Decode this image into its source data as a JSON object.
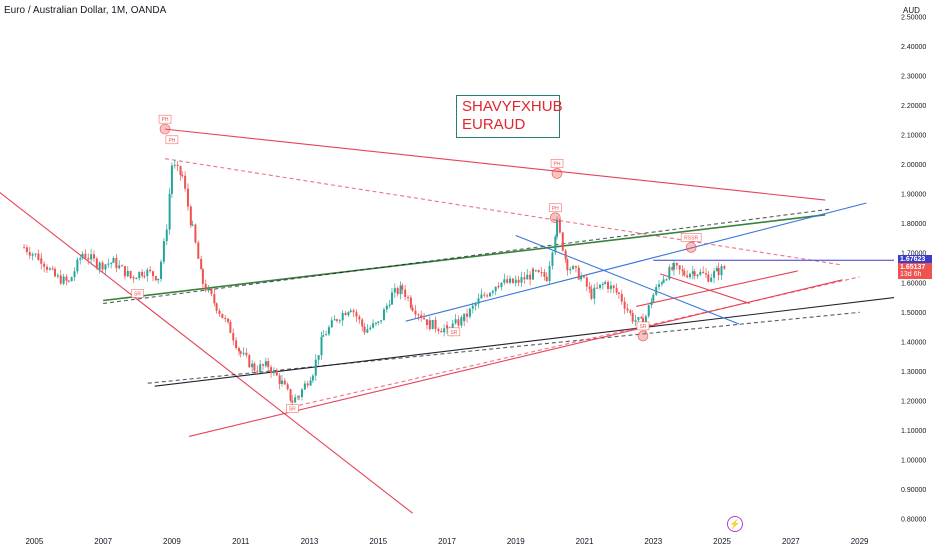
{
  "header": {
    "symbol_title": "Euro / Australian Dollar, 1M, OANDA",
    "currency": "AUD"
  },
  "annotation": {
    "line1": "SHAVYFXHUB",
    "line2": "EURAUD"
  },
  "price_tags": {
    "upper": "1.67623",
    "current": "1.65137",
    "countdown": "13d 6h"
  },
  "marker_labels": [
    "PH",
    "PH",
    "PH",
    "PH",
    "SR",
    "SR",
    "SR",
    "SR",
    "RSSR"
  ],
  "colors": {
    "up": "#26a69a",
    "down": "#ef5350",
    "trend_red": "#e53950",
    "trend_blue": "#2f6fdc",
    "trend_green": "#2e7d32",
    "trend_black": "#131722",
    "level": "#3c3cc8"
  },
  "chart_data": {
    "type": "candlestick",
    "x_tick_labels": [
      "2005",
      "2007",
      "2009",
      "2011",
      "2013",
      "2015",
      "2017",
      "2019",
      "2021",
      "2023",
      "2025",
      "2027",
      "2029"
    ],
    "y_tick_labels": [
      "2.50000",
      "2.40000",
      "2.30000",
      "2.20000",
      "2.10000",
      "2.00000",
      "1.90000",
      "1.80000",
      "1.70000",
      "1.60000",
      "1.50000",
      "1.40000",
      "1.30000",
      "1.20000",
      "1.10000",
      "1.00000",
      "0.90000",
      "0.80000"
    ],
    "ylim": [
      0.77,
      2.53
    ],
    "xlim": [
      2004.0,
      2030.0
    ],
    "close_path": [
      [
        2004.7,
        1.72
      ],
      [
        2005.2,
        1.68
      ],
      [
        2005.6,
        1.62
      ],
      [
        2006.0,
        1.6
      ],
      [
        2006.4,
        1.7
      ],
      [
        2006.9,
        1.66
      ],
      [
        2007.3,
        1.67
      ],
      [
        2007.8,
        1.62
      ],
      [
        2008.2,
        1.64
      ],
      [
        2008.6,
        1.62
      ],
      [
        2008.85,
        1.78
      ],
      [
        2009.0,
        2.0
      ],
      [
        2009.3,
        1.96
      ],
      [
        2009.6,
        1.78
      ],
      [
        2009.9,
        1.6
      ],
      [
        2010.3,
        1.52
      ],
      [
        2010.7,
        1.44
      ],
      [
        2011.0,
        1.36
      ],
      [
        2011.4,
        1.31
      ],
      [
        2011.8,
        1.32
      ],
      [
        2012.2,
        1.26
      ],
      [
        2012.5,
        1.2
      ],
      [
        2012.7,
        1.22
      ],
      [
        2013.1,
        1.3
      ],
      [
        2013.4,
        1.42
      ],
      [
        2013.8,
        1.48
      ],
      [
        2014.2,
        1.52
      ],
      [
        2014.6,
        1.44
      ],
      [
        2015.0,
        1.46
      ],
      [
        2015.4,
        1.56
      ],
      [
        2015.7,
        1.58
      ],
      [
        2016.0,
        1.52
      ],
      [
        2016.5,
        1.46
      ],
      [
        2017.0,
        1.44
      ],
      [
        2017.5,
        1.48
      ],
      [
        2018.0,
        1.55
      ],
      [
        2018.5,
        1.6
      ],
      [
        2019.0,
        1.6
      ],
      [
        2019.5,
        1.63
      ],
      [
        2019.9,
        1.62
      ],
      [
        2020.2,
        1.8
      ],
      [
        2020.5,
        1.66
      ],
      [
        2020.9,
        1.62
      ],
      [
        2021.2,
        1.56
      ],
      [
        2021.6,
        1.6
      ],
      [
        2022.0,
        1.56
      ],
      [
        2022.4,
        1.48
      ],
      [
        2022.7,
        1.46
      ],
      [
        2023.0,
        1.56
      ],
      [
        2023.3,
        1.62
      ],
      [
        2023.6,
        1.65
      ],
      [
        2023.9,
        1.63
      ],
      [
        2024.2,
        1.64
      ],
      [
        2024.6,
        1.62
      ],
      [
        2024.9,
        1.64
      ],
      [
        2025.1,
        1.65137
      ]
    ],
    "last_price": 1.65137,
    "level_price": 1.67623
  }
}
